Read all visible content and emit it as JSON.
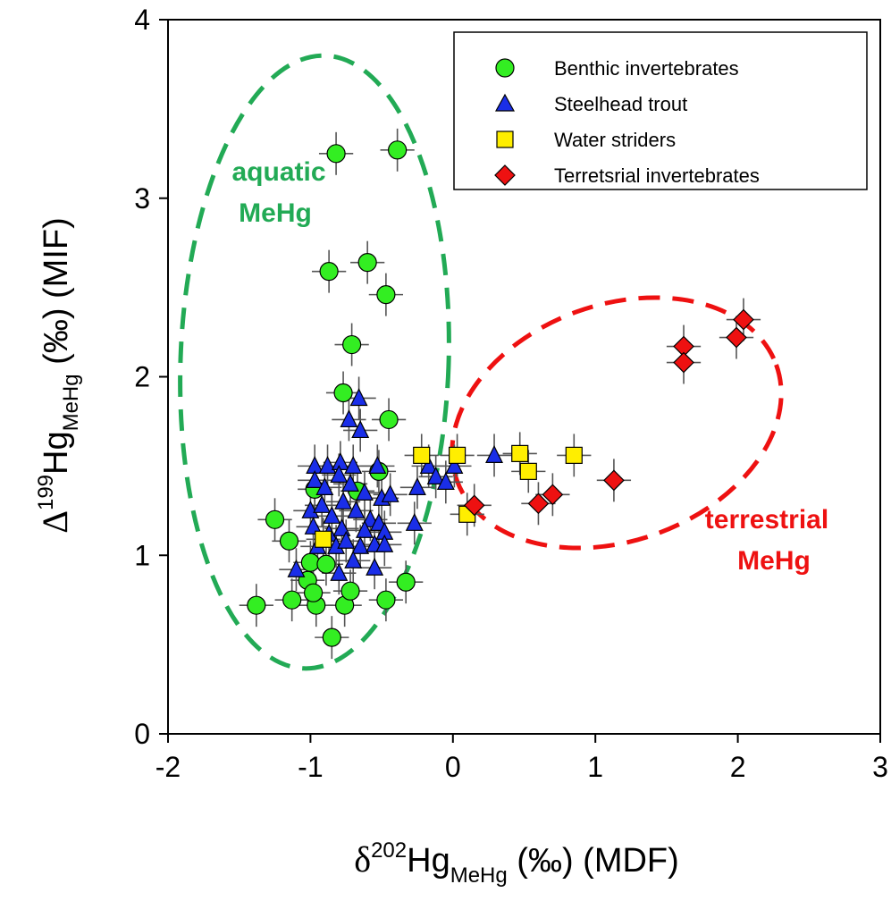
{
  "chart_data": {
    "type": "scatter",
    "xlim": [
      -2,
      3
    ],
    "ylim": [
      0,
      4
    ],
    "x_ticks": [
      "-2",
      "-1",
      "0",
      "1",
      "2",
      "3"
    ],
    "y_ticks": [
      "0",
      "1",
      "2",
      "3",
      "4"
    ],
    "xlabel": {
      "pre": "δ",
      "sup": "202",
      "main": "Hg",
      "sub": "MeHg",
      "post": " (‰) (MDF)"
    },
    "ylabel": {
      "pre": "Δ",
      "sup": "199",
      "main": "Hg",
      "sub": "MeHg",
      "post": " (‰) (MIF)"
    },
    "legend_position": "top-right",
    "error_bars": true,
    "series": [
      {
        "name": "Benthic invertebrates",
        "marker": "circle",
        "color": "#33ee22",
        "points": [
          [
            -0.82,
            3.25
          ],
          [
            -0.39,
            3.27
          ],
          [
            -0.87,
            2.59
          ],
          [
            -0.6,
            2.64
          ],
          [
            -0.47,
            2.46
          ],
          [
            -0.71,
            2.18
          ],
          [
            -0.77,
            1.91
          ],
          [
            -0.45,
            1.76
          ],
          [
            -1.25,
            1.2
          ],
          [
            -1.15,
            1.08
          ],
          [
            -1.38,
            0.72
          ],
          [
            -1.13,
            0.75
          ],
          [
            -1.02,
            0.86
          ],
          [
            -1.0,
            0.96
          ],
          [
            -0.96,
            0.72
          ],
          [
            -0.89,
            0.95
          ],
          [
            -0.85,
            0.54
          ],
          [
            -0.76,
            0.72
          ],
          [
            -0.72,
            0.8
          ],
          [
            -0.47,
            0.75
          ],
          [
            -0.33,
            0.85
          ],
          [
            -0.52,
            1.47
          ],
          [
            -0.97,
            1.37
          ],
          [
            -0.67,
            1.36
          ],
          [
            -0.98,
            0.79
          ]
        ]
      },
      {
        "name": "Steelhead trout",
        "marker": "triangle",
        "color": "#1a2ee8",
        "points": [
          [
            -0.66,
            1.88
          ],
          [
            -0.73,
            1.76
          ],
          [
            -0.65,
            1.7
          ],
          [
            -0.97,
            1.5
          ],
          [
            -0.88,
            1.5
          ],
          [
            -0.79,
            1.52
          ],
          [
            -0.7,
            1.5
          ],
          [
            -0.53,
            1.5
          ],
          [
            -0.97,
            1.42
          ],
          [
            -0.9,
            1.38
          ],
          [
            -0.8,
            1.45
          ],
          [
            -0.72,
            1.4
          ],
          [
            -0.62,
            1.35
          ],
          [
            -0.5,
            1.32
          ],
          [
            -0.44,
            1.34
          ],
          [
            -1.0,
            1.25
          ],
          [
            -0.92,
            1.28
          ],
          [
            -0.85,
            1.22
          ],
          [
            -0.77,
            1.3
          ],
          [
            -0.68,
            1.25
          ],
          [
            -0.58,
            1.2
          ],
          [
            -0.52,
            1.18
          ],
          [
            -0.98,
            1.16
          ],
          [
            -0.87,
            1.12
          ],
          [
            -0.78,
            1.15
          ],
          [
            -0.62,
            1.14
          ],
          [
            -0.48,
            1.13
          ],
          [
            -0.95,
            1.05
          ],
          [
            -0.82,
            1.05
          ],
          [
            -0.75,
            1.08
          ],
          [
            -0.65,
            1.05
          ],
          [
            -0.55,
            1.06
          ],
          [
            -0.48,
            1.06
          ],
          [
            -0.7,
            0.97
          ],
          [
            -0.55,
            0.93
          ],
          [
            -1.1,
            0.92
          ],
          [
            -0.8,
            0.9
          ],
          [
            -0.25,
            1.38
          ],
          [
            -0.27,
            1.18
          ],
          [
            -0.17,
            1.5
          ],
          [
            -0.12,
            1.44
          ],
          [
            -0.05,
            1.41
          ],
          [
            0.01,
            1.5
          ],
          [
            0.29,
            1.56
          ]
        ]
      },
      {
        "name": "Water striders",
        "marker": "square",
        "color": "#ffee00",
        "points": [
          [
            -0.22,
            1.56
          ],
          [
            0.03,
            1.56
          ],
          [
            0.47,
            1.57
          ],
          [
            0.53,
            1.47
          ],
          [
            0.85,
            1.56
          ],
          [
            -0.91,
            1.09
          ],
          [
            0.1,
            1.23
          ]
        ]
      },
      {
        "name": "Terretsrial invertebrates",
        "marker": "diamond",
        "color": "#ee1111",
        "points": [
          [
            1.62,
            2.17
          ],
          [
            1.62,
            2.08
          ],
          [
            1.99,
            2.22
          ],
          [
            2.04,
            2.32
          ],
          [
            1.13,
            1.42
          ],
          [
            0.7,
            1.34
          ],
          [
            0.6,
            1.29
          ],
          [
            0.15,
            1.28
          ]
        ]
      }
    ],
    "annotations": [
      {
        "text_lines": [
          "aquatic",
          "MeHg"
        ],
        "color": "#22aa55"
      },
      {
        "text_lines": [
          "terrestrial",
          "MeHg"
        ],
        "color": "#ee1111"
      }
    ]
  }
}
